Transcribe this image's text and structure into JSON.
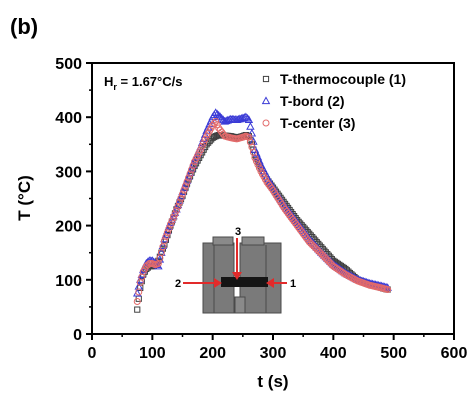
{
  "chart_data": {
    "type": "scatter",
    "panel_label": "(b)",
    "annotation": {
      "main": "H",
      "sub": "r",
      "rest": " = 1.67°C/s"
    },
    "xlabel": "t (s)",
    "ylabel": "T (°C)",
    "xlim": [
      0,
      600
    ],
    "ylim": [
      0,
      500
    ],
    "xticks": [
      "0",
      "100",
      "200",
      "300",
      "400",
      "500",
      "600"
    ],
    "yticks": [
      "0",
      "100",
      "200",
      "300",
      "400",
      "500"
    ],
    "grid": false,
    "legend_position": "top-right",
    "series": [
      {
        "name": "T-thermocouple (1)",
        "marker": "square",
        "color": "#404040",
        "x": [
          75,
          80,
          85,
          90,
          95,
          100,
          105,
          110,
          115,
          120,
          130,
          140,
          150,
          160,
          170,
          180,
          190,
          200,
          205,
          210,
          220,
          230,
          240,
          250,
          255,
          260,
          265,
          270,
          280,
          290,
          300,
          320,
          340,
          360,
          380,
          400,
          420,
          440,
          460,
          480,
          490
        ],
        "y": [
          45,
          85,
          110,
          120,
          125,
          125,
          128,
          135,
          150,
          165,
          200,
          230,
          255,
          285,
          310,
          330,
          350,
          362,
          365,
          367,
          366,
          365,
          362,
          365,
          367,
          365,
          350,
          330,
          305,
          285,
          270,
          240,
          210,
          185,
          160,
          135,
          120,
          100,
          92,
          85,
          82
        ]
      },
      {
        "name": "T-bord (2)",
        "marker": "triangle",
        "color": "#3b3bd6",
        "x": [
          75,
          80,
          85,
          90,
          95,
          100,
          105,
          110,
          115,
          120,
          130,
          140,
          150,
          160,
          170,
          180,
          190,
          200,
          205,
          210,
          220,
          230,
          240,
          250,
          255,
          260,
          265,
          270,
          280,
          290,
          300,
          320,
          340,
          360,
          380,
          400,
          420,
          440,
          460,
          480,
          490
        ],
        "y": [
          75,
          100,
          118,
          130,
          135,
          135,
          130,
          125,
          150,
          175,
          205,
          230,
          262,
          290,
          320,
          345,
          375,
          400,
          408,
          403,
          392,
          396,
          395,
          398,
          400,
          395,
          370,
          340,
          312,
          290,
          270,
          235,
          205,
          175,
          150,
          128,
          112,
          100,
          93,
          88,
          85
        ]
      },
      {
        "name": "T-center (3)",
        "marker": "circle",
        "color": "#e26a6a",
        "x": [
          75,
          80,
          85,
          90,
          95,
          100,
          105,
          110,
          115,
          120,
          130,
          140,
          150,
          160,
          170,
          180,
          190,
          200,
          205,
          210,
          220,
          230,
          240,
          250,
          255,
          260,
          265,
          270,
          280,
          290,
          300,
          320,
          340,
          360,
          380,
          400,
          420,
          440,
          460,
          480,
          490
        ],
        "y": [
          60,
          95,
          115,
          125,
          130,
          130,
          128,
          130,
          150,
          172,
          202,
          228,
          258,
          288,
          318,
          340,
          365,
          385,
          392,
          380,
          365,
          362,
          360,
          363,
          365,
          363,
          345,
          325,
          300,
          280,
          265,
          230,
          200,
          170,
          148,
          125,
          110,
          98,
          90,
          85,
          82
        ]
      }
    ],
    "inset": {
      "labels": [
        "3",
        "2",
        "1"
      ],
      "arrow_color": "#e22a2a",
      "body_color": "#7a7a7a",
      "center_color": "#151515"
    }
  }
}
